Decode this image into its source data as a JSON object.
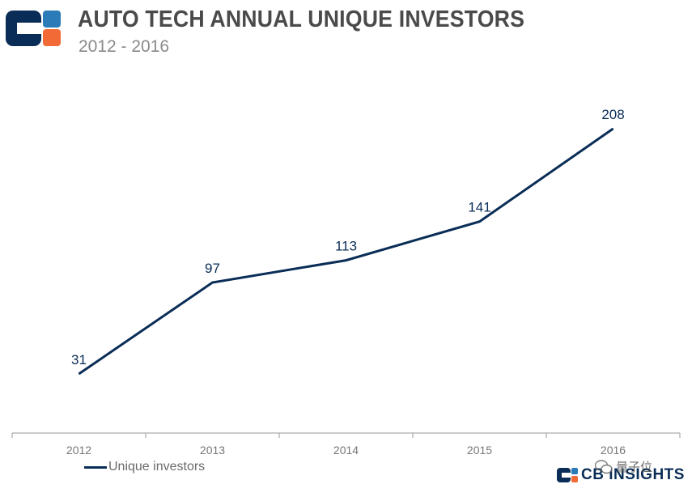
{
  "header": {
    "title": "AUTO TECH ANNUAL UNIQUE INVESTORS",
    "subtitle": "2012 - 2016"
  },
  "colors": {
    "series": "#0a2d57",
    "brand_blue": "#0a2d57",
    "brand_orange": "#f26a36",
    "brand_light": "#2b7bb9"
  },
  "chart_data": {
    "type": "line",
    "title": "AUTO TECH ANNUAL UNIQUE INVESTORS",
    "subtitle": "2012 - 2016",
    "xlabel": "",
    "ylabel": "",
    "categories": [
      "2012",
      "2013",
      "2014",
      "2015",
      "2016"
    ],
    "series": [
      {
        "name": "Unique investors",
        "values": [
          31,
          97,
          113,
          141,
          208
        ]
      }
    ],
    "data_labels": [
      "31",
      "97",
      "113",
      "141",
      "208"
    ],
    "ylim": [
      0,
      230
    ],
    "grid": false,
    "legend": "bottom-left"
  },
  "legend": {
    "label": "Unique investors"
  },
  "footer": {
    "brand_text": "CB INSIGHTS",
    "wechat_label": "量子位"
  }
}
